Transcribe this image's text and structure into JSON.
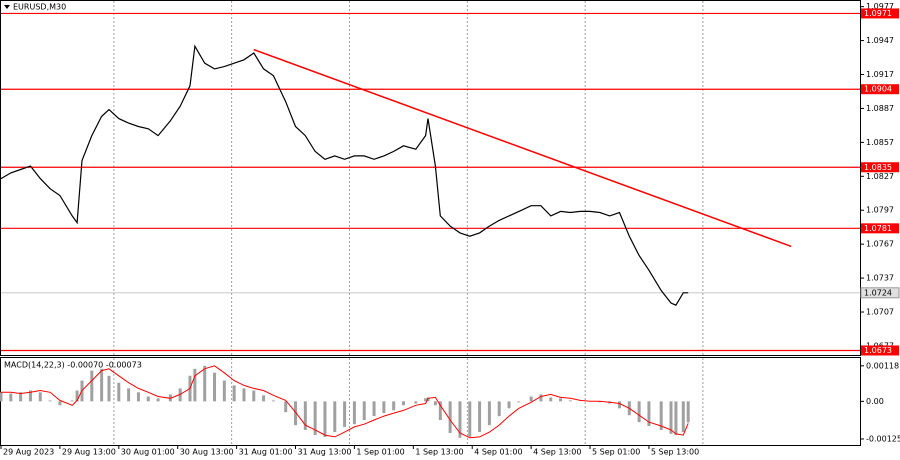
{
  "chart_data": [
    {
      "type": "line",
      "title": "EURUSD,M30",
      "color": "#000000",
      "x": [
        0,
        4,
        8,
        12,
        16,
        20,
        24,
        29,
        31,
        33,
        37,
        41,
        44,
        48,
        52,
        56,
        60,
        64,
        69,
        73,
        77,
        79,
        83,
        87,
        91,
        95,
        99,
        103,
        107,
        111,
        116,
        120,
        124,
        128,
        132,
        136,
        140,
        144,
        148,
        152,
        156,
        160,
        164,
        169,
        173,
        174,
        177,
        179,
        183,
        187,
        191,
        195,
        199,
        203,
        207,
        211,
        216,
        220,
        224,
        228,
        232,
        236,
        240,
        244,
        248,
        252,
        256,
        260,
        264,
        269,
        273,
        275,
        278,
        280
      ],
      "values": [
        1.0825,
        1.083,
        1.0833,
        1.0836,
        1.0825,
        1.0816,
        1.081,
        1.0792,
        1.0786,
        1.0841,
        1.0863,
        1.088,
        1.0886,
        1.0878,
        1.0874,
        1.0871,
        1.0869,
        1.0863,
        1.0876,
        1.0889,
        1.0907,
        1.0942,
        1.0927,
        1.0922,
        1.0924,
        1.0927,
        1.093,
        1.0936,
        1.0922,
        1.0916,
        1.0893,
        1.0871,
        1.0863,
        1.0849,
        1.0842,
        1.0845,
        1.0842,
        1.0845,
        1.0845,
        1.0842,
        1.0845,
        1.0849,
        1.0854,
        1.0851,
        1.0863,
        1.0878,
        1.0836,
        1.0792,
        1.0783,
        1.0777,
        1.0774,
        1.0777,
        1.0783,
        1.0788,
        1.0792,
        1.0796,
        1.0801,
        1.0801,
        1.0792,
        1.0796,
        1.0795,
        1.0796,
        1.0796,
        1.0795,
        1.0792,
        1.0795,
        1.0774,
        1.0757,
        1.0744,
        1.0726,
        1.0715,
        1.0713,
        1.0724,
        1.0724
      ],
      "xlim": [
        0,
        350
      ],
      "ylim": [
        1.0669,
        1.0982
      ],
      "xticks": [
        {
          "value": 0,
          "label": "29 Aug 2023"
        },
        {
          "value": 24,
          "label": "29 Aug 13:00"
        },
        {
          "value": 48,
          "label": "30 Aug 01:00"
        },
        {
          "value": 72,
          "label": "30 Aug 13:00"
        },
        {
          "value": 96,
          "label": "31 Aug 01:00"
        },
        {
          "value": 120,
          "label": "31 Aug 13:00"
        },
        {
          "value": 144,
          "label": "1 Sep 01:00"
        },
        {
          "value": 168,
          "label": "1 Sep 13:00"
        },
        {
          "value": 192,
          "label": "4 Sep 01:00"
        },
        {
          "value": 216,
          "label": "4 Sep 13:00"
        },
        {
          "value": 240,
          "label": "5 Sep 01:00"
        },
        {
          "value": 264,
          "label": "5 Sep 13:00"
        }
      ],
      "yticks": [
        1.0977,
        1.0947,
        1.0917,
        1.0887,
        1.0857,
        1.0827,
        1.0797,
        1.0767,
        1.0737,
        1.0707,
        1.0677
      ],
      "xgrid": [
        46,
        94,
        142,
        190,
        238,
        286
      ],
      "levels": [
        1.0971,
        1.0904,
        1.0835,
        1.0781,
        1.0673
      ],
      "level_color": "#ff0000",
      "current_price": 1.0724,
      "trendline": {
        "x": [
          103,
          322
        ],
        "y": [
          1.0939,
          1.0765
        ],
        "color": "#ff0000"
      }
    },
    {
      "type": "bar",
      "title": "MACD(14,22,3) -0.00070 -0.00073",
      "x": [
        0,
        4,
        8,
        12,
        16,
        20,
        24,
        29,
        31,
        33,
        37,
        41,
        44,
        48,
        52,
        56,
        60,
        64,
        69,
        73,
        77,
        79,
        83,
        87,
        91,
        95,
        99,
        103,
        107,
        111,
        116,
        120,
        124,
        128,
        132,
        136,
        140,
        144,
        148,
        152,
        156,
        160,
        164,
        169,
        173,
        174,
        177,
        179,
        183,
        187,
        191,
        195,
        199,
        203,
        207,
        211,
        216,
        220,
        224,
        228,
        232,
        236,
        240,
        244,
        248,
        252,
        256,
        260,
        264,
        269,
        273,
        275,
        278,
        280
      ],
      "histogram": {
        "color": "#a0a0a0",
        "values": [
          0.0003,
          0.00026,
          0.0003,
          0.00036,
          0.0003,
          3e-05,
          -0.00013,
          3e-05,
          0.00036,
          0.00069,
          0.00102,
          0.00108,
          0.00085,
          0.00062,
          0.00043,
          0.0003,
          0.00016,
          0.0001,
          0.00023,
          0.00043,
          0.00085,
          0.00108,
          0.00118,
          0.00095,
          0.00069,
          0.00053,
          0.00043,
          0.00036,
          0.0002,
          3e-05,
          -0.00036,
          -0.00079,
          -0.00095,
          -0.00112,
          -0.00118,
          -0.00102,
          -0.00085,
          -0.00076,
          -0.00062,
          -0.00049,
          -0.00039,
          -0.0003,
          -0.00013,
          -7e-05,
          0.0001,
          0.00013,
          -0.00013,
          -0.00062,
          -0.00105,
          -0.00121,
          -0.00118,
          -0.00102,
          -0.00079,
          -0.00049,
          -0.00023,
          -3e-05,
          0.00016,
          0.00023,
          0.00013,
          0.0001,
          3e-05,
          0,
          0,
          -3e-05,
          -7e-05,
          -0.00023,
          -0.00046,
          -0.00069,
          -0.00082,
          -0.00095,
          -0.00108,
          -0.00112,
          -0.00102,
          -0.0007
        ]
      },
      "signal": {
        "color": "#ff0000",
        "values": [
          0.0003,
          0.0003,
          0.00026,
          0.0003,
          0.00036,
          0.0003,
          3e-05,
          -0.00013,
          3e-05,
          0.00036,
          0.00069,
          0.00102,
          0.00108,
          0.00085,
          0.00062,
          0.00043,
          0.0003,
          0.00016,
          0.0001,
          0.00023,
          0.00043,
          0.00085,
          0.00108,
          0.00118,
          0.00095,
          0.00069,
          0.00053,
          0.00043,
          0.00036,
          0.0002,
          3e-05,
          -0.00036,
          -0.00079,
          -0.00095,
          -0.00112,
          -0.00118,
          -0.00102,
          -0.00085,
          -0.00076,
          -0.00062,
          -0.00049,
          -0.00039,
          -0.0003,
          -0.00013,
          -7e-05,
          0.0001,
          0.00013,
          -0.00013,
          -0.00062,
          -0.00105,
          -0.00121,
          -0.00118,
          -0.00102,
          -0.00079,
          -0.00049,
          -0.00023,
          -3e-05,
          0.00016,
          0.00023,
          0.00013,
          0.0001,
          3e-05,
          0,
          0,
          -3e-05,
          -7e-05,
          -0.00023,
          -0.00046,
          -0.00069,
          -0.00082,
          -0.00095,
          -0.00108,
          -0.00112,
          -0.00073
        ]
      },
      "xlim": [
        0,
        350
      ],
      "ylim": [
        -0.00145,
        0.00144
      ],
      "yticks": [
        0.00118,
        {
          "value": 0,
          "label": "0.00"
        },
        -0.00125
      ]
    }
  ]
}
